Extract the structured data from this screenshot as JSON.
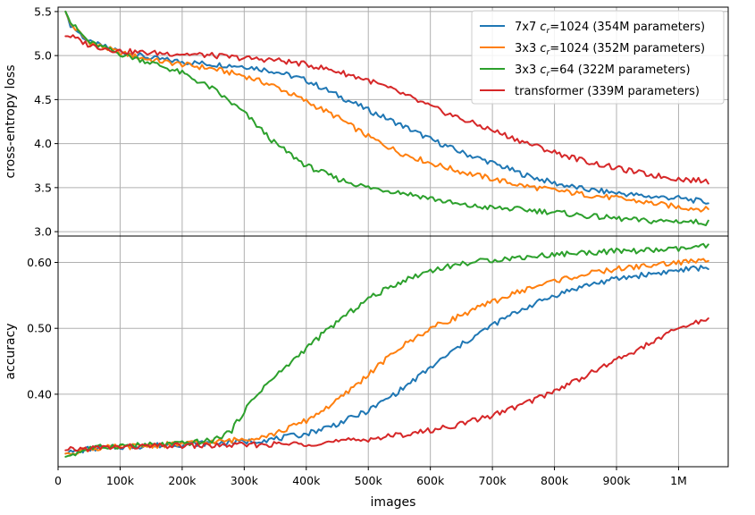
{
  "chart_data": [
    {
      "type": "line",
      "panel": "top",
      "xlabel": "images",
      "ylabel": "cross-entropy loss",
      "xlim": [
        0,
        1080000
      ],
      "ylim": [
        2.95,
        5.55
      ],
      "x_ticks": [
        0,
        100000,
        200000,
        300000,
        400000,
        500000,
        600000,
        700000,
        800000,
        900000,
        1000000
      ],
      "x_tick_labels": [
        "0",
        "100k",
        "200k",
        "300k",
        "400k",
        "500k",
        "600k",
        "700k",
        "800k",
        "900k",
        "1M"
      ],
      "y_ticks": [
        3.0,
        3.5,
        4.0,
        4.5,
        5.0,
        5.5
      ],
      "y_tick_labels": [
        "3.0",
        "3.5",
        "4.0",
        "4.5",
        "5.0",
        "5.5"
      ],
      "grid": true,
      "legend_position": "top-right",
      "series": [
        {
          "name": "7x7 c_r=1024 (354M parameters)",
          "label_prefix": "7x7 ",
          "label_var": "c",
          "label_sub": "r",
          "label_suffix": "=1024 (354M parameters)",
          "color": "#1f77b4",
          "x": [
            12000,
            20000,
            50000,
            100000,
            150000,
            200000,
            250000,
            300000,
            350000,
            400000,
            450000,
            500000,
            550000,
            600000,
            650000,
            700000,
            750000,
            800000,
            850000,
            900000,
            950000,
            1000000,
            1050000
          ],
          "y": [
            5.5,
            5.35,
            5.15,
            5.05,
            4.97,
            4.93,
            4.9,
            4.88,
            4.82,
            4.72,
            4.55,
            4.38,
            4.22,
            4.05,
            3.9,
            3.78,
            3.65,
            3.55,
            3.48,
            3.44,
            3.4,
            3.38,
            3.33
          ]
        },
        {
          "name": "3x3 c_r=1024 (352M parameters)",
          "label_prefix": "3x3 ",
          "label_var": "c",
          "label_sub": "r",
          "label_suffix": "=1024 (352M parameters)",
          "color": "#ff7f0e",
          "x": [
            12000,
            20000,
            50000,
            100000,
            150000,
            200000,
            250000,
            300000,
            350000,
            400000,
            450000,
            500000,
            550000,
            600000,
            650000,
            700000,
            750000,
            800000,
            850000,
            900000,
            950000,
            1000000,
            1050000
          ],
          "y": [
            5.5,
            5.36,
            5.15,
            5.03,
            4.95,
            4.9,
            4.85,
            4.77,
            4.65,
            4.48,
            4.3,
            4.08,
            3.9,
            3.78,
            3.68,
            3.6,
            3.52,
            3.47,
            3.42,
            3.38,
            3.33,
            3.28,
            3.25
          ]
        },
        {
          "name": "3x3 c_r=64 (322M parameters)",
          "label_prefix": "3x3 ",
          "label_var": "c",
          "label_sub": "r",
          "label_suffix": "=64 (322M parameters)",
          "color": "#2ca02c",
          "x": [
            12000,
            20000,
            50000,
            100000,
            150000,
            200000,
            250000,
            300000,
            350000,
            400000,
            450000,
            500000,
            550000,
            600000,
            650000,
            700000,
            750000,
            800000,
            850000,
            900000,
            950000,
            1000000,
            1050000
          ],
          "y": [
            5.5,
            5.38,
            5.15,
            5.02,
            4.92,
            4.8,
            4.62,
            4.35,
            4.0,
            3.75,
            3.6,
            3.5,
            3.45,
            3.38,
            3.3,
            3.27,
            3.25,
            3.22,
            3.18,
            3.15,
            3.12,
            3.12,
            3.1
          ]
        },
        {
          "name": "transformer (339M parameters)",
          "label_prefix": "transformer (339M parameters)",
          "label_var": "",
          "label_sub": "",
          "label_suffix": "",
          "color": "#d62728",
          "x": [
            12000,
            20000,
            50000,
            100000,
            150000,
            200000,
            250000,
            300000,
            350000,
            400000,
            450000,
            500000,
            550000,
            600000,
            650000,
            700000,
            750000,
            800000,
            850000,
            900000,
            950000,
            1000000,
            1050000
          ],
          "y": [
            5.22,
            5.22,
            5.12,
            5.05,
            5.03,
            5.02,
            5.0,
            4.97,
            4.95,
            4.9,
            4.82,
            4.72,
            4.58,
            4.42,
            4.28,
            4.15,
            4.02,
            3.9,
            3.8,
            3.72,
            3.65,
            3.6,
            3.57
          ]
        }
      ]
    },
    {
      "type": "line",
      "panel": "bottom",
      "xlabel": "images",
      "ylabel": "accuracy",
      "xlim": [
        0,
        1080000
      ],
      "ylim": [
        0.29,
        0.64
      ],
      "x_ticks": [
        0,
        100000,
        200000,
        300000,
        400000,
        500000,
        600000,
        700000,
        800000,
        900000,
        1000000
      ],
      "x_tick_labels": [
        "0",
        "100k",
        "200k",
        "300k",
        "400k",
        "500k",
        "600k",
        "700k",
        "800k",
        "900k",
        "1M"
      ],
      "y_ticks": [
        0.4,
        0.5,
        0.6
      ],
      "y_tick_labels": [
        "0.40",
        "0.50",
        "0.60"
      ],
      "grid": true,
      "series": [
        {
          "name": "7x7 c_r=1024 (354M parameters)",
          "color": "#1f77b4",
          "x": [
            12000,
            50000,
            100000,
            150000,
            200000,
            250000,
            300000,
            350000,
            400000,
            450000,
            500000,
            550000,
            600000,
            650000,
            700000,
            750000,
            800000,
            850000,
            900000,
            950000,
            1000000,
            1050000
          ],
          "y": [
            0.31,
            0.317,
            0.32,
            0.322,
            0.324,
            0.326,
            0.328,
            0.332,
            0.34,
            0.355,
            0.375,
            0.405,
            0.44,
            0.475,
            0.505,
            0.53,
            0.55,
            0.565,
            0.575,
            0.582,
            0.588,
            0.593
          ]
        },
        {
          "name": "3x3 c_r=1024 (352M parameters)",
          "color": "#ff7f0e",
          "x": [
            12000,
            50000,
            100000,
            150000,
            200000,
            250000,
            300000,
            350000,
            400000,
            450000,
            500000,
            550000,
            600000,
            650000,
            700000,
            750000,
            800000,
            850000,
            900000,
            950000,
            1000000,
            1050000
          ],
          "y": [
            0.31,
            0.317,
            0.32,
            0.322,
            0.325,
            0.327,
            0.332,
            0.34,
            0.36,
            0.39,
            0.43,
            0.47,
            0.5,
            0.52,
            0.54,
            0.558,
            0.572,
            0.582,
            0.59,
            0.595,
            0.6,
            0.603
          ]
        },
        {
          "name": "3x3 c_r=64 (322M parameters)",
          "color": "#2ca02c",
          "x": [
            12000,
            50000,
            100000,
            150000,
            200000,
            250000,
            280000,
            300000,
            330000,
            360000,
            400000,
            450000,
            500000,
            550000,
            600000,
            650000,
            700000,
            750000,
            800000,
            850000,
            900000,
            950000,
            1000000,
            1050000
          ],
          "y": [
            0.305,
            0.318,
            0.322,
            0.323,
            0.325,
            0.33,
            0.345,
            0.375,
            0.41,
            0.435,
            0.47,
            0.51,
            0.545,
            0.57,
            0.588,
            0.598,
            0.604,
            0.608,
            0.612,
            0.615,
            0.617,
            0.618,
            0.62,
            0.625
          ]
        },
        {
          "name": "transformer (339M parameters)",
          "color": "#d62728",
          "x": [
            12000,
            50000,
            100000,
            150000,
            200000,
            250000,
            300000,
            350000,
            400000,
            450000,
            500000,
            550000,
            600000,
            650000,
            700000,
            750000,
            800000,
            850000,
            900000,
            950000,
            1000000,
            1050000
          ],
          "y": [
            0.315,
            0.318,
            0.32,
            0.321,
            0.322,
            0.322,
            0.323,
            0.324,
            0.325,
            0.328,
            0.332,
            0.338,
            0.345,
            0.355,
            0.368,
            0.385,
            0.405,
            0.428,
            0.452,
            0.475,
            0.5,
            0.515
          ]
        }
      ]
    }
  ]
}
